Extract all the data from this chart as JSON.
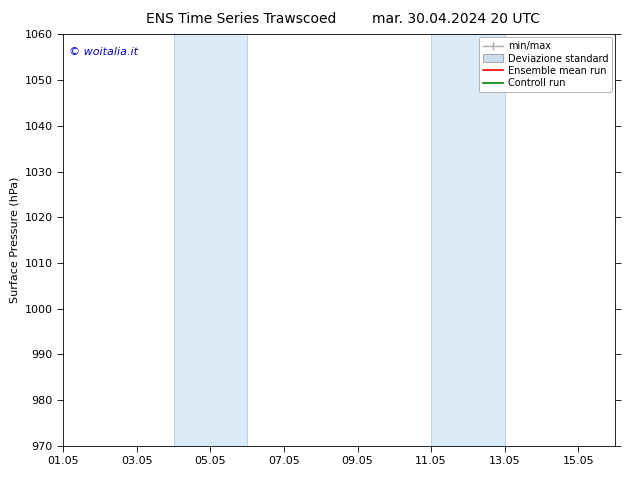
{
  "title_left": "ENS Time Series Trawscoed",
  "title_right": "mar. 30.04.2024 20 UTC",
  "ylabel": "Surface Pressure (hPa)",
  "ylim": [
    970,
    1060
  ],
  "yticks": [
    970,
    980,
    990,
    1000,
    1010,
    1020,
    1030,
    1040,
    1050,
    1060
  ],
  "xlim": [
    1,
    16
  ],
  "xtick_labels": [
    "01.05",
    "03.05",
    "05.05",
    "07.05",
    "09.05",
    "11.05",
    "13.05",
    "15.05"
  ],
  "xtick_days": [
    1,
    3,
    5,
    7,
    9,
    11,
    13,
    15
  ],
  "shaded_bands": [
    {
      "xstart_day": 4.0,
      "xend_day": 6.0
    },
    {
      "xstart_day": 11.0,
      "xend_day": 13.0
    }
  ],
  "shaded_color": "#daeaf7",
  "shaded_edge_color": "#b0cfe8",
  "background_color": "#ffffff",
  "watermark": "© woitalia.it",
  "watermark_color": "#0000cc",
  "watermark_fontsize": 8,
  "title_fontsize": 10,
  "legend_labels": [
    "min/max",
    "Deviazione standard",
    "Ensemble mean run",
    "Controll run"
  ],
  "minmax_color": "#aaaaaa",
  "devstd_color": "#ccdded",
  "ensemble_color": "#ff0000",
  "control_color": "#008000",
  "axis_label_fontsize": 8,
  "tick_fontsize": 8
}
